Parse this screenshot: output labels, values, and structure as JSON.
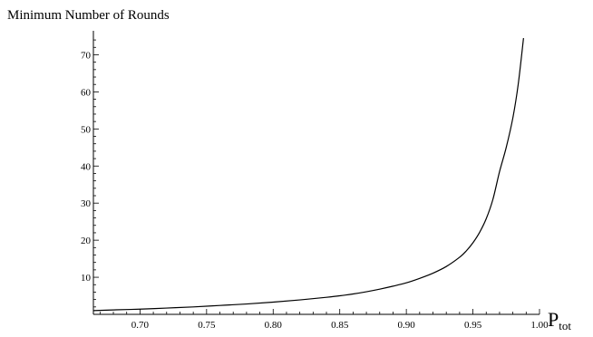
{
  "chart_data": {
    "type": "line",
    "title": "",
    "ylabel": "Minimum Number of Rounds",
    "xlabel": {
      "main": "P",
      "subscript": "tot"
    },
    "xlim": [
      0.665,
      1.0
    ],
    "ylim": [
      0,
      75
    ],
    "grid": false,
    "legend": "none",
    "x_ticks": [
      0.7,
      0.75,
      0.8,
      0.85,
      0.9,
      0.95,
      1.0
    ],
    "x_tick_labels": [
      "0.70",
      "0.75",
      "0.80",
      "0.85",
      "0.90",
      "0.95",
      "1.00"
    ],
    "y_ticks": [
      10,
      20,
      30,
      40,
      50,
      60,
      70
    ],
    "y_tick_labels": [
      "10",
      "20",
      "30",
      "40",
      "50",
      "60",
      "70"
    ],
    "series": [
      {
        "x": [
          0.665,
          0.68,
          0.7,
          0.72,
          0.74,
          0.76,
          0.78,
          0.8,
          0.82,
          0.84,
          0.85,
          0.86,
          0.87,
          0.88,
          0.89,
          0.9,
          0.91,
          0.92,
          0.93,
          0.94,
          0.945,
          0.95,
          0.955,
          0.96,
          0.965,
          0.97,
          0.975,
          0.98,
          0.984,
          0.988
        ],
        "y": [
          1.0,
          1.2,
          1.4,
          1.7,
          2.0,
          2.4,
          2.8,
          3.3,
          3.9,
          4.6,
          5.0,
          5.5,
          6.1,
          6.8,
          7.6,
          8.5,
          9.7,
          11.1,
          12.9,
          15.4,
          17.1,
          19.3,
          22.1,
          25.8,
          31.0,
          38.5,
          45.0,
          53.0,
          62.0,
          74.5
        ]
      }
    ]
  },
  "colors": {
    "line": "#000000",
    "axis": "#000000",
    "background": "#ffffff"
  }
}
